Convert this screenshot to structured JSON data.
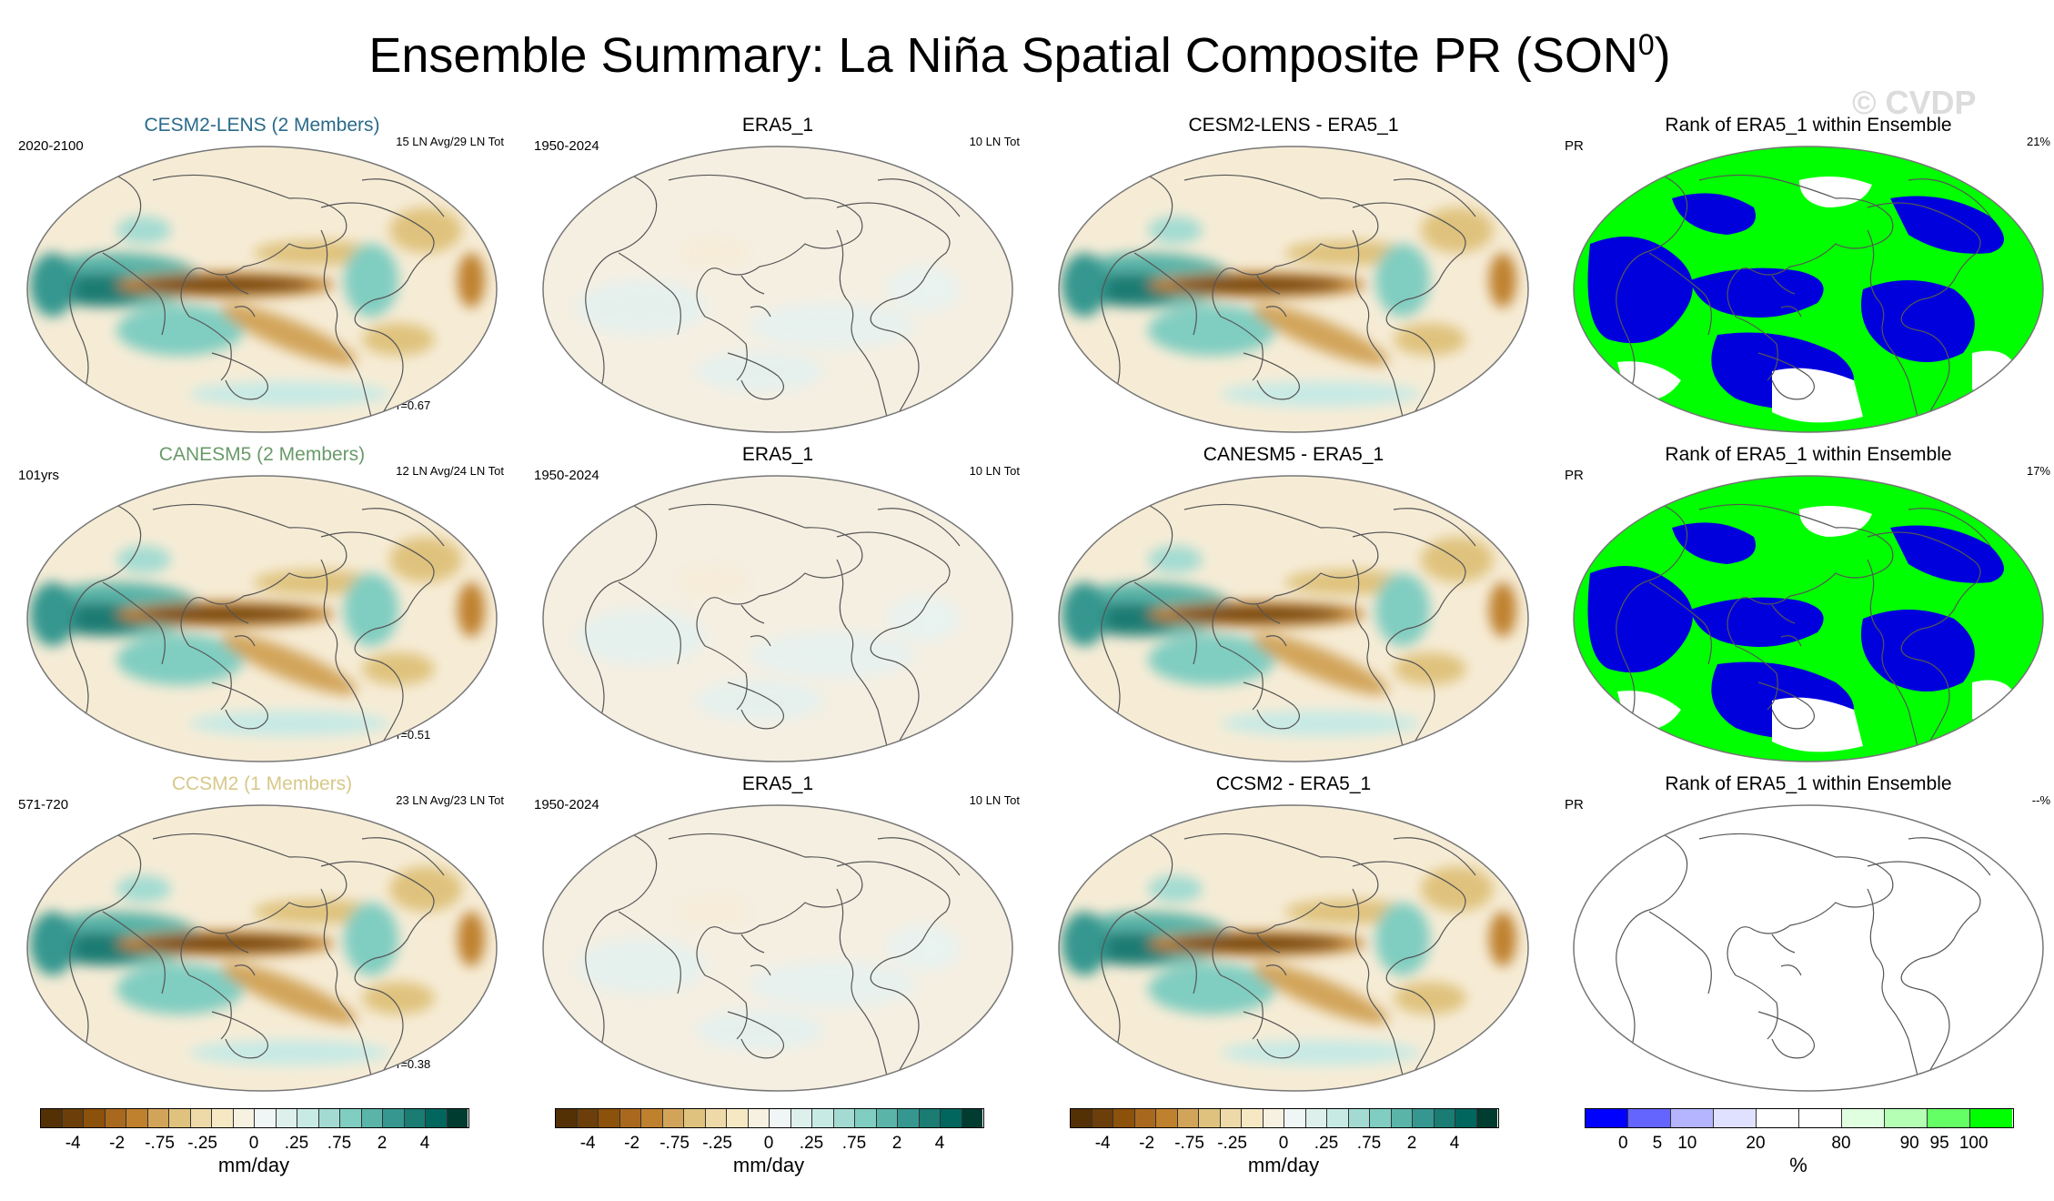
{
  "title": "Ensemble Summary: La Niña Spatial Composite PR (SON",
  "title_sup": "0",
  "title_close": ")",
  "watermark": "© CVDP",
  "rows": [
    {
      "model": {
        "title": "CESM2-LENS (2 Members)",
        "title_color": "#2a6a8a",
        "left": "2020-2100",
        "right": "15 LN Avg/29 LN Tot",
        "r": "r=0.67"
      },
      "obs": {
        "title": "ERA5_1",
        "left": "1950-2024",
        "right": "10 LN Tot"
      },
      "diff": {
        "title": "CESM2-LENS - ERA5_1"
      },
      "rank": {
        "title": "Rank of ERA5_1 within Ensemble",
        "left": "PR",
        "right": "21%"
      }
    },
    {
      "model": {
        "title": "CANESM5 (2 Members)",
        "title_color": "#6a9a6a",
        "left": "101yrs",
        "right": "12 LN Avg/24 LN Tot",
        "r": "r=0.51"
      },
      "obs": {
        "title": "ERA5_1",
        "left": "1950-2024",
        "right": "10 LN Tot"
      },
      "diff": {
        "title": "CANESM5 - ERA5_1"
      },
      "rank": {
        "title": "Rank of ERA5_1 within Ensemble",
        "left": "PR",
        "right": "17%"
      }
    },
    {
      "model": {
        "title": "CCSM2 (1 Members)",
        "title_color": "#d8c88a",
        "left": "571-720",
        "right": "23 LN Avg/23 LN Tot",
        "r": "r=0.38"
      },
      "obs": {
        "title": "ERA5_1",
        "left": "1950-2024",
        "right": "10 LN Tot"
      },
      "diff": {
        "title": "CCSM2 - ERA5_1"
      },
      "rank": {
        "title": "Rank of ERA5_1 within Ensemble",
        "left": "PR",
        "right": "--%"
      }
    }
  ],
  "colorbar_pr": {
    "colors": [
      "#543005",
      "#6b3e0a",
      "#8c510a",
      "#a8691f",
      "#bf812d",
      "#d2a45a",
      "#dfc27d",
      "#eed9a8",
      "#f6e8c3",
      "#f7f1e1",
      "#f0f5f5",
      "#ddf0ec",
      "#c7eae5",
      "#a3dbd2",
      "#80cdc1",
      "#5ab4a8",
      "#35978f",
      "#1a7c73",
      "#01665e",
      "#003c30"
    ],
    "ticks": [
      "-4",
      "-2",
      "-.75",
      "-.25",
      "0",
      ".25",
      ".75",
      "2",
      "4"
    ],
    "unit": "mm/day"
  },
  "colorbar_rank": {
    "colors": [
      "#0000ff",
      "#6464ff",
      "#b4b4ff",
      "#e0e0ff",
      "#ffffff",
      "#ffffff",
      "#e0ffe0",
      "#b4ffb4",
      "#64ff64",
      "#00ff00"
    ],
    "ticks": [
      "0",
      "5",
      "10",
      "20",
      "80",
      "90",
      "95",
      "100"
    ],
    "unit": "%"
  }
}
